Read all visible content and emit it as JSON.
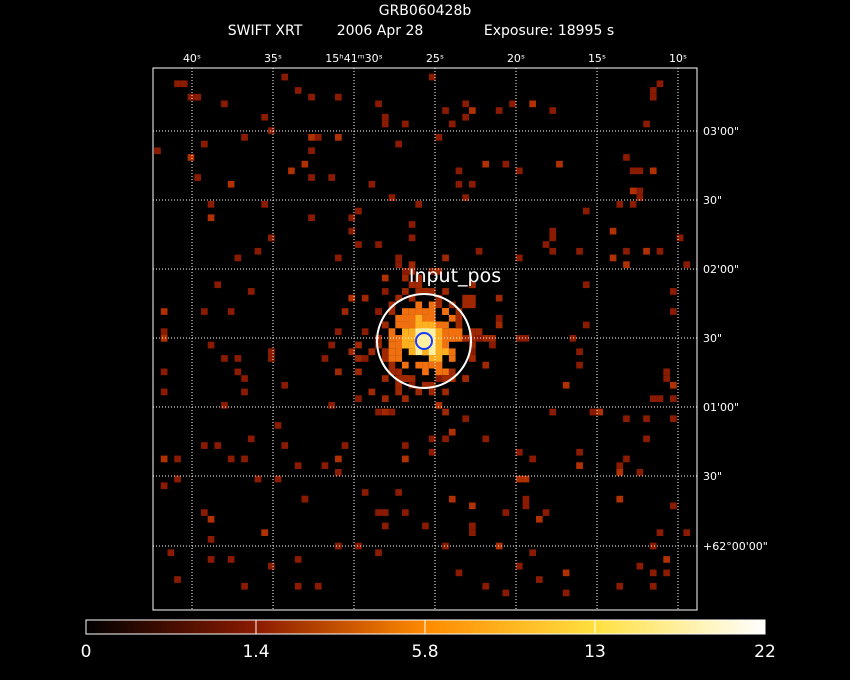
{
  "header": {
    "title": "GRB060428b",
    "instrument": "SWIFT XRT",
    "date": "2006 Apr 28",
    "exposure": "Exposure: 18995 s"
  },
  "ra_labels": [
    "40ˢ",
    "35ˢ",
    "15ʰ41ᵐ30ˢ",
    "25ˢ",
    "20ˢ",
    "15ˢ",
    "10ˢ"
  ],
  "dec_labels": [
    "03'00\"",
    "30\"",
    "02'00\"",
    "30\"",
    "01'00\"",
    "30\"",
    "+62°00'00\""
  ],
  "annotation": "Input_pos",
  "colorbar_labels": [
    0,
    1.4,
    5.8,
    13,
    22
  ]
}
